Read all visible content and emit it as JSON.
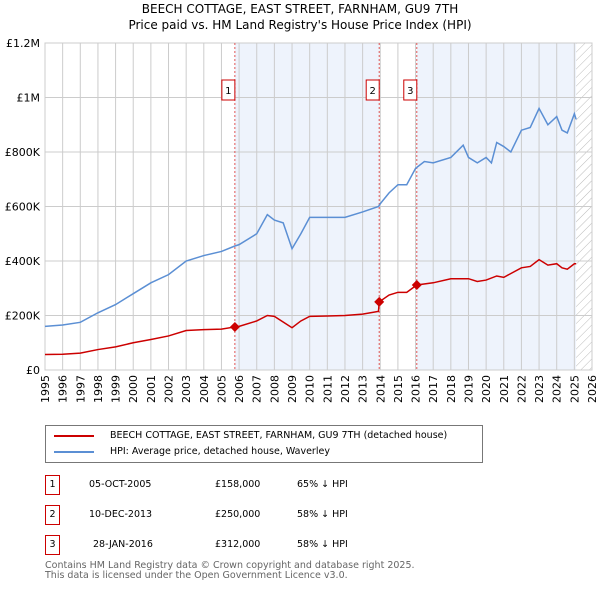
{
  "chart_data": {
    "type": "line",
    "title": "BEECH COTTAGE, EAST STREET, FARNHAM, GU9 7TH",
    "subtitle": "Price paid vs. HM Land Registry's House Price Index (HPI)",
    "xlim": [
      1995,
      2026
    ],
    "ylim": [
      0,
      1200000
    ],
    "y_ticks": [
      {
        "v": 0,
        "label": "£0"
      },
      {
        "v": 200000,
        "label": "£200K"
      },
      {
        "v": 400000,
        "label": "£400K"
      },
      {
        "v": 600000,
        "label": "£600K"
      },
      {
        "v": 800000,
        "label": "£800K"
      },
      {
        "v": 1000000,
        "label": "£1M"
      },
      {
        "v": 1200000,
        "label": "£1.2M"
      }
    ],
    "x_ticks": [
      "1995",
      "1996",
      "1997",
      "1998",
      "1999",
      "2000",
      "2001",
      "2002",
      "2003",
      "2004",
      "2005",
      "2006",
      "2007",
      "2008",
      "2009",
      "2010",
      "2011",
      "2012",
      "2013",
      "2014",
      "2015",
      "2016",
      "2017",
      "2018",
      "2019",
      "2020",
      "2021",
      "2022",
      "2023",
      "2024",
      "2025",
      "2026"
    ],
    "grid": true,
    "series": [
      {
        "name": "BEECH COTTAGE, EAST STREET, FARNHAM, GU9 7TH (detached house)",
        "color": "#cc0000",
        "points": [
          [
            1995,
            57
          ],
          [
            1996,
            58
          ],
          [
            1997,
            62
          ],
          [
            1998,
            75
          ],
          [
            1999,
            85
          ],
          [
            2000,
            100
          ],
          [
            2001,
            112
          ],
          [
            2002,
            125
          ],
          [
            2003,
            145
          ],
          [
            2004,
            148
          ],
          [
            2005,
            150
          ],
          [
            2005.76,
            158
          ],
          [
            2006,
            160
          ],
          [
            2007,
            180
          ],
          [
            2007.6,
            200
          ],
          [
            2008,
            197
          ],
          [
            2009,
            155
          ],
          [
            2009.5,
            180
          ],
          [
            2010,
            197
          ],
          [
            2011,
            198
          ],
          [
            2012,
            200
          ],
          [
            2013,
            205
          ],
          [
            2013.9,
            215
          ],
          [
            2013.94,
            250
          ],
          [
            2014.5,
            275
          ],
          [
            2015,
            285
          ],
          [
            2015.5,
            285
          ],
          [
            2016.07,
            312
          ],
          [
            2017,
            320
          ],
          [
            2018,
            335
          ],
          [
            2019,
            335
          ],
          [
            2019.5,
            325
          ],
          [
            2020,
            330
          ],
          [
            2020.6,
            345
          ],
          [
            2021,
            340
          ],
          [
            2022,
            375
          ],
          [
            2022.5,
            380
          ],
          [
            2023,
            405
          ],
          [
            2023.5,
            385
          ],
          [
            2024,
            390
          ],
          [
            2024.3,
            375
          ],
          [
            2024.6,
            370
          ],
          [
            2025,
            390
          ],
          [
            2025.1,
            390
          ]
        ]
      },
      {
        "name": "HPI: Average price, detached house, Waverley",
        "color": "#5b8fd4",
        "points": [
          [
            1995,
            160
          ],
          [
            1996,
            165
          ],
          [
            1997,
            175
          ],
          [
            1998,
            210
          ],
          [
            1999,
            240
          ],
          [
            2000,
            280
          ],
          [
            2001,
            320
          ],
          [
            2002,
            350
          ],
          [
            2003,
            400
          ],
          [
            2004,
            420
          ],
          [
            2005,
            435
          ],
          [
            2005.76,
            455
          ],
          [
            2006,
            460
          ],
          [
            2007,
            500
          ],
          [
            2007.6,
            570
          ],
          [
            2008,
            550
          ],
          [
            2008.5,
            540
          ],
          [
            2009,
            445
          ],
          [
            2009.5,
            500
          ],
          [
            2010,
            560
          ],
          [
            2011,
            560
          ],
          [
            2012,
            560
          ],
          [
            2013,
            580
          ],
          [
            2013.9,
            600
          ],
          [
            2014,
            610
          ],
          [
            2014.5,
            650
          ],
          [
            2015,
            680
          ],
          [
            2015.5,
            680
          ],
          [
            2016,
            740
          ],
          [
            2016.5,
            765
          ],
          [
            2017,
            760
          ],
          [
            2018,
            780
          ],
          [
            2018.7,
            825
          ],
          [
            2019,
            780
          ],
          [
            2019.5,
            760
          ],
          [
            2020,
            780
          ],
          [
            2020.3,
            760
          ],
          [
            2020.6,
            835
          ],
          [
            2021,
            820
          ],
          [
            2021.4,
            800
          ],
          [
            2022,
            880
          ],
          [
            2022.5,
            890
          ],
          [
            2023,
            960
          ],
          [
            2023.5,
            900
          ],
          [
            2024,
            930
          ],
          [
            2024.3,
            880
          ],
          [
            2024.6,
            870
          ],
          [
            2025,
            940
          ],
          [
            2025.1,
            920
          ]
        ]
      }
    ],
    "y_units": "thousands GBP",
    "sales": [
      {
        "n": "1",
        "x": 2005.76,
        "price": 158,
        "date": "05-OCT-2005",
        "price_label": "£158,000",
        "hpi": "65% ↓ HPI"
      },
      {
        "n": "2",
        "x": 2013.94,
        "price": 250,
        "date": "10-DEC-2013",
        "price_label": "£250,000",
        "hpi": "58% ↓ HPI"
      },
      {
        "n": "3",
        "x": 2016.07,
        "price": 312,
        "date": "28-JAN-2016",
        "price_label": "£312,000",
        "hpi": "58% ↓ HPI"
      }
    ],
    "data_end": 2025.1,
    "legend_position": "below"
  },
  "footer": [
    "Contains HM Land Registry data © Crown copyright and database right 2025.",
    "This data is licensed under the Open Government Licence v3.0."
  ]
}
